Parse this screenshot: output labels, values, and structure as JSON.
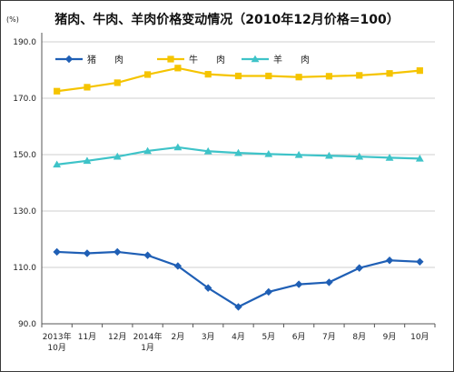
{
  "chart_data": {
    "type": "line",
    "title": "猪肉、牛肉、羊肉价格变动情况（2010年12月价格=100）",
    "ylabel": "(%)",
    "xlabel": "",
    "ylim": [
      90,
      190
    ],
    "yticks": [
      "90.0",
      "110.0",
      "130.0",
      "150.0",
      "170.0",
      "190.0"
    ],
    "categories": [
      [
        "2013年",
        "10月"
      ],
      [
        "11月"
      ],
      [
        "12月"
      ],
      [
        "2014年",
        "1月"
      ],
      [
        "2月"
      ],
      [
        "3月"
      ],
      [
        "4月"
      ],
      [
        "5月"
      ],
      [
        "6月"
      ],
      [
        "7月"
      ],
      [
        "8月"
      ],
      [
        "9月"
      ],
      [
        "10月"
      ]
    ],
    "series": [
      {
        "name": "猪　　肉",
        "color": "#1f5fb5",
        "marker": "diamond",
        "values": [
          115.5,
          115.0,
          115.5,
          114.3,
          110.5,
          102.7,
          96.0,
          101.3,
          104.0,
          104.7,
          109.8,
          112.5,
          112.0
        ]
      },
      {
        "name": "牛　　肉",
        "color": "#f5c400",
        "marker": "square",
        "values": [
          172.5,
          173.9,
          175.5,
          178.4,
          180.7,
          178.5,
          177.9,
          177.9,
          177.5,
          177.8,
          178.1,
          178.8,
          179.8
        ]
      },
      {
        "name": "羊　　肉",
        "color": "#3ec3c8",
        "marker": "triangle",
        "values": [
          146.5,
          147.8,
          149.3,
          151.3,
          152.6,
          151.2,
          150.6,
          150.2,
          149.9,
          149.6,
          149.3,
          148.9,
          148.6
        ]
      }
    ],
    "grid": true,
    "legend": "top-left"
  }
}
